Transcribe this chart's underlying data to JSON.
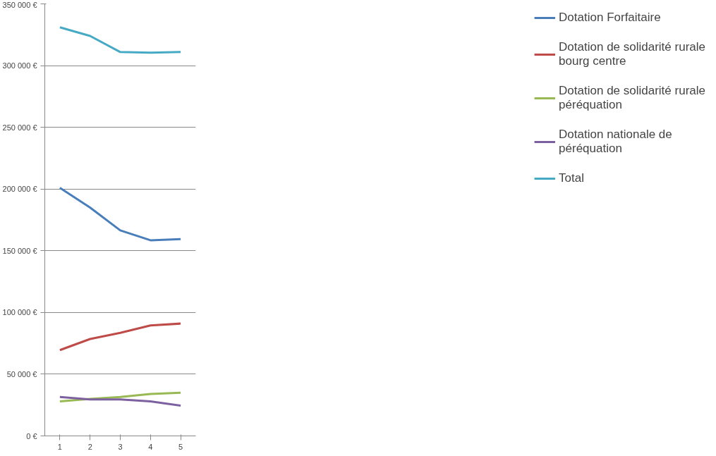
{
  "chart_data": {
    "type": "line",
    "categories": [
      "1",
      "2",
      "3",
      "4",
      "5"
    ],
    "series": [
      {
        "name": "Dotation Forfaitaire",
        "color": "#4a7ebb",
        "values": [
          201000,
          185000,
          166500,
          158500,
          159500
        ]
      },
      {
        "name": "Dotation de solidarité rurale bourg centre",
        "color": "#be4b48",
        "values": [
          69500,
          78500,
          83500,
          89500,
          91000
        ]
      },
      {
        "name": "Dotation de solidarité rurale péréquation",
        "color": "#98b954",
        "values": [
          28000,
          30000,
          31500,
          34000,
          35000
        ]
      },
      {
        "name": "Dotation nationale de péréquation",
        "color": "#7d60a0",
        "values": [
          31500,
          29500,
          29500,
          28000,
          24500
        ]
      },
      {
        "name": "Total",
        "color": "#46aac5",
        "values": [
          331000,
          324000,
          311000,
          310500,
          311000
        ]
      }
    ],
    "ylim": [
      0,
      350000
    ],
    "yticks": [
      {
        "value": 0,
        "label": "0 €"
      },
      {
        "value": 50000,
        "label": "50 000 €"
      },
      {
        "value": 100000,
        "label": "100 000 €"
      },
      {
        "value": 150000,
        "label": "150 000 €"
      },
      {
        "value": 200000,
        "label": "200 000 €"
      },
      {
        "value": 250000,
        "label": "250 000 €"
      },
      {
        "value": 300000,
        "label": "300 000 €"
      },
      {
        "value": 350000,
        "label": "350 000 €"
      }
    ],
    "grid": "y",
    "legend": "right",
    "marker": "none",
    "line_style": "solid"
  }
}
